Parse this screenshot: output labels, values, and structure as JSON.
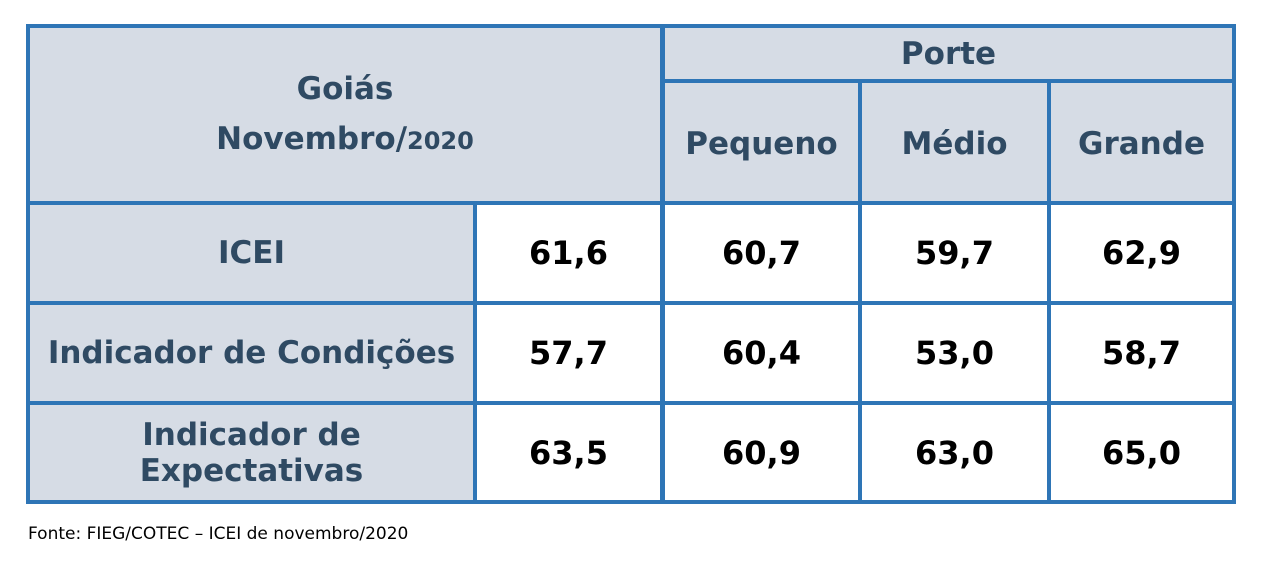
{
  "header": {
    "title_line1": "Goiás",
    "title_line2_main": "Novembro/",
    "title_line2_year": "2020",
    "porte_label": "Porte",
    "columns": [
      "Pequeno",
      "Médio",
      "Grande"
    ]
  },
  "rows": [
    {
      "label": "ICEI",
      "total": "61,6",
      "values": [
        "60,7",
        "59,7",
        "62,9"
      ]
    },
    {
      "label": "Indicador de Condições",
      "total": "57,7",
      "values": [
        "60,4",
        "53,0",
        "58,7"
      ]
    },
    {
      "label": "Indicador de Expectativas",
      "total": "63,5",
      "values": [
        "60,9",
        "63,0",
        "65,0"
      ]
    }
  ],
  "source": "Fonte: FIEG/COTEC – ICEI de novembro/2020",
  "colors": {
    "header_bg": "#d6dce5",
    "border": "#2e75b6",
    "header_text": "#2f4a63"
  }
}
